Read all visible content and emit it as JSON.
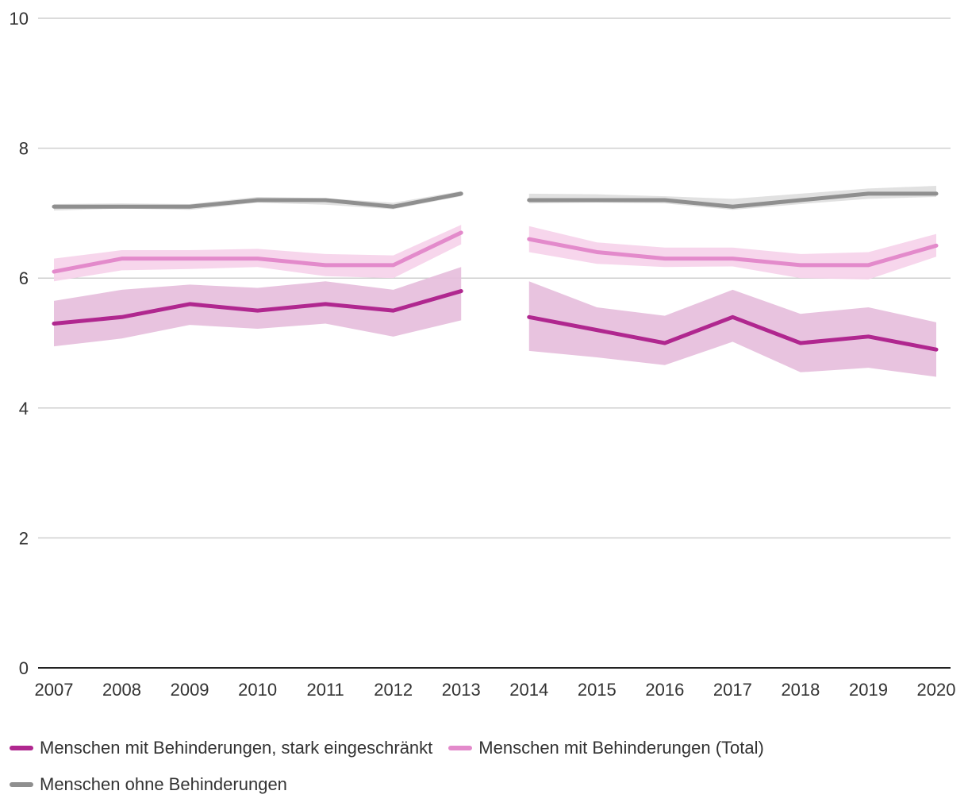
{
  "chart_data": {
    "type": "line",
    "title": "",
    "xlabel": "",
    "ylabel": "",
    "ylim": [
      0,
      10
    ],
    "yticks": [
      0,
      2,
      4,
      6,
      8,
      10
    ],
    "grid": true,
    "legend_position": "bottom",
    "categories": [
      "2007",
      "2008",
      "2009",
      "2010",
      "2011",
      "2012",
      "2013",
      "2014",
      "2015",
      "2016",
      "2017",
      "2018",
      "2019",
      "2020"
    ],
    "break_after": "2013",
    "series": [
      {
        "name": "Menschen mit Behinderungen, stark eingeschränkt",
        "color": "#b0278f",
        "band_color": "#e5bddb",
        "values": [
          5.3,
          5.4,
          5.6,
          5.5,
          5.6,
          5.5,
          5.8,
          5.4,
          5.2,
          5.0,
          5.4,
          5.0,
          5.1,
          4.9
        ],
        "lower": [
          4.95,
          5.07,
          5.28,
          5.22,
          5.3,
          5.1,
          5.35,
          4.88,
          4.78,
          4.66,
          5.02,
          4.55,
          4.62,
          4.48
        ],
        "upper": [
          5.65,
          5.82,
          5.9,
          5.85,
          5.95,
          5.82,
          6.17,
          5.95,
          5.55,
          5.42,
          5.82,
          5.45,
          5.55,
          5.32
        ]
      },
      {
        "name": "Menschen mit Behinderungen (Total)",
        "color": "#e38acb",
        "band_color": "#f6d2ea",
        "values": [
          6.1,
          6.3,
          6.3,
          6.3,
          6.2,
          6.2,
          6.7,
          6.6,
          6.4,
          6.3,
          6.3,
          6.2,
          6.2,
          6.5
        ],
        "lower": [
          5.95,
          6.12,
          6.14,
          6.17,
          6.03,
          6.0,
          6.52,
          6.4,
          6.22,
          6.17,
          6.18,
          6.0,
          5.98,
          6.33
        ],
        "upper": [
          6.3,
          6.43,
          6.43,
          6.45,
          6.37,
          6.35,
          6.82,
          6.8,
          6.55,
          6.47,
          6.47,
          6.37,
          6.4,
          6.68
        ]
      },
      {
        "name": "Menschen ohne Behinderungen",
        "color": "#8f8f8f",
        "band_color": "#dedede",
        "values": [
          7.1,
          7.1,
          7.1,
          7.2,
          7.2,
          7.1,
          7.3,
          7.2,
          7.2,
          7.2,
          7.1,
          7.2,
          7.3,
          7.3
        ],
        "lower": [
          7.04,
          7.07,
          7.05,
          7.16,
          7.13,
          7.06,
          7.26,
          7.15,
          7.16,
          7.15,
          7.05,
          7.14,
          7.22,
          7.25
        ],
        "upper": [
          7.14,
          7.15,
          7.14,
          7.25,
          7.23,
          7.16,
          7.34,
          7.3,
          7.29,
          7.26,
          7.22,
          7.3,
          7.38,
          7.42
        ]
      }
    ]
  }
}
